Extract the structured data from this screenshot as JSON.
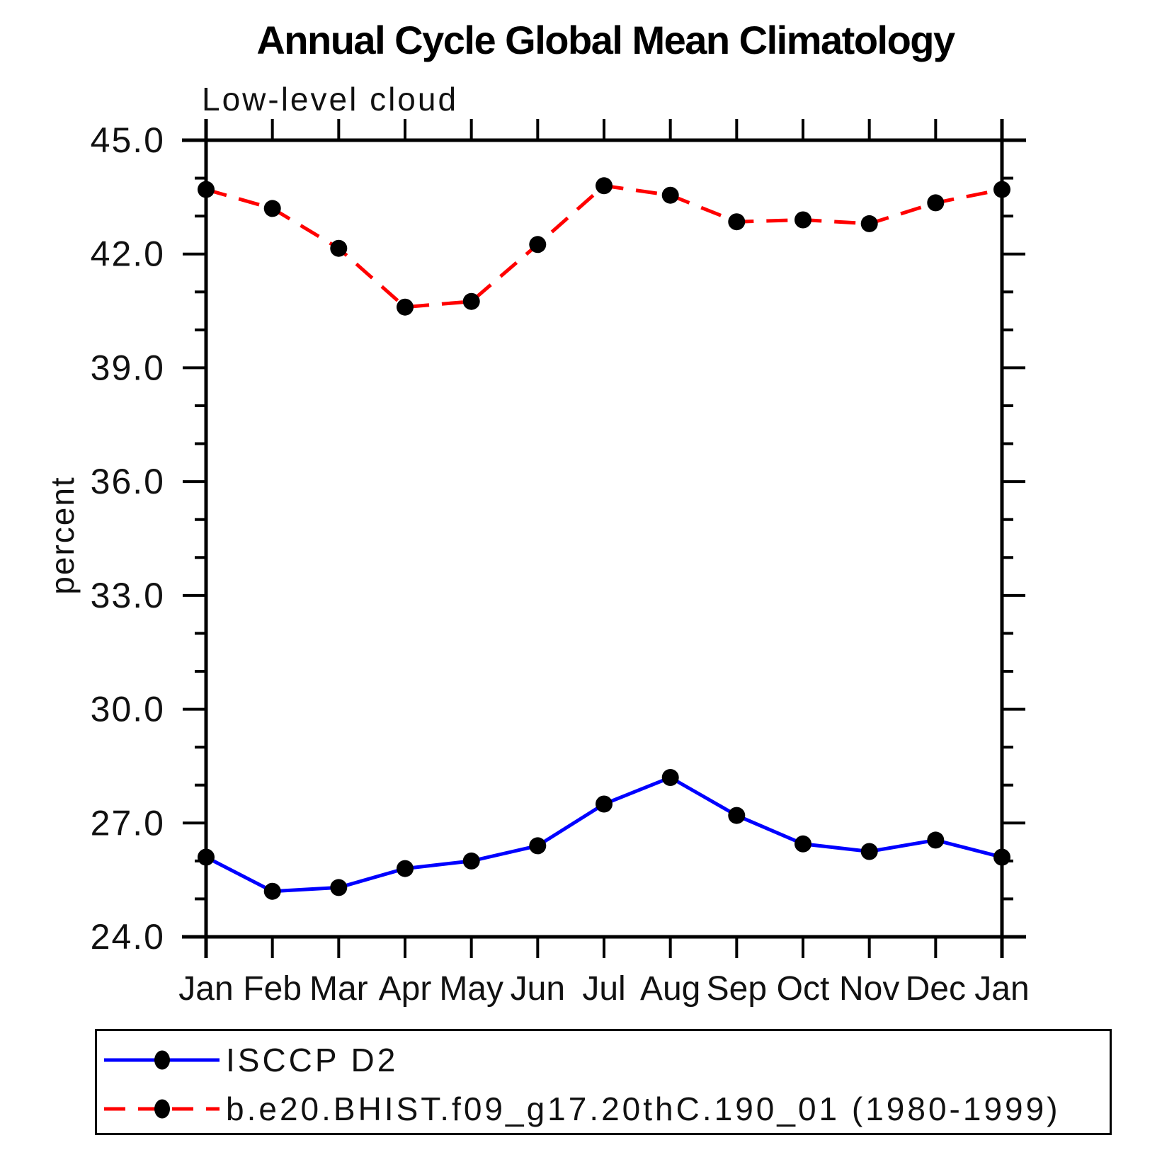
{
  "page": {
    "background": "#ffffff"
  },
  "chart_data": {
    "type": "line",
    "title": "Annual Cycle Global Mean Climatology",
    "subtitle": "Low-level cloud",
    "xlabel": "",
    "ylabel": "percent",
    "categories": [
      "Jan",
      "Feb",
      "Mar",
      "Apr",
      "May",
      "Jun",
      "Jul",
      "Aug",
      "Sep",
      "Oct",
      "Nov",
      "Dec",
      "Jan"
    ],
    "ylim": [
      24.0,
      45.0
    ],
    "yticks": {
      "major_values": [
        24.0,
        27.0,
        30.0,
        33.0,
        36.0,
        39.0,
        42.0,
        45.0
      ],
      "major_labels": [
        "24.0",
        "27.0",
        "30.0",
        "33.0",
        "36.0",
        "39.0",
        "42.0",
        "45.0"
      ],
      "minor_step": 1.0
    },
    "grid": false,
    "legend_position": "bottom-left-box",
    "axis_color": "#000000",
    "series": [
      {
        "name": "ISCCP D2",
        "color": "#0000ff",
        "line_style": "solid",
        "marker": "filled-circle",
        "marker_color": "#000000",
        "values": [
          26.1,
          25.2,
          25.3,
          25.8,
          26.0,
          26.4,
          27.5,
          28.2,
          27.2,
          26.45,
          26.25,
          26.55,
          26.1
        ]
      },
      {
        "name": "b.e20.BHIST.f09_g17.20thC.190_01 (1980-1999)",
        "color": "#ff0000",
        "line_style": "dashed",
        "marker": "filled-circle",
        "marker_color": "#000000",
        "values": [
          43.7,
          43.2,
          42.15,
          40.6,
          40.75,
          42.25,
          43.8,
          43.55,
          42.85,
          42.9,
          42.8,
          43.35,
          43.7
        ]
      }
    ]
  }
}
